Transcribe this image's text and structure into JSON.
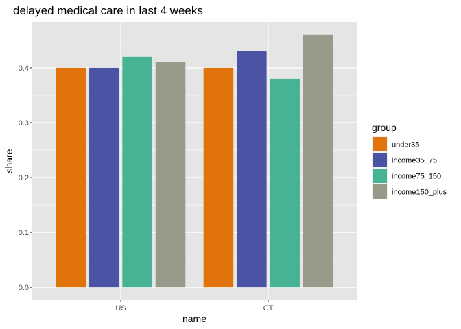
{
  "chart_data": {
    "type": "bar",
    "title": "delayed medical care in last 4 weeks",
    "xlabel": "name",
    "ylabel": "share",
    "categories": [
      "US",
      "CT"
    ],
    "series": [
      {
        "name": "under35",
        "values": [
          0.4,
          0.4
        ],
        "color": "#E07309"
      },
      {
        "name": "income35_75",
        "values": [
          0.4,
          0.43
        ],
        "color": "#4B53A5"
      },
      {
        "name": "income75_150",
        "values": [
          0.42,
          0.38
        ],
        "color": "#47B395"
      },
      {
        "name": "income150_plus",
        "values": [
          0.41,
          0.46
        ],
        "color": "#989B8A"
      }
    ],
    "yticks": [
      "0.0",
      "0.1",
      "0.2",
      "0.3",
      "0.4"
    ],
    "ylim": [
      -0.0235,
      0.4835
    ],
    "grid": true,
    "legend": {
      "title": "group",
      "placement": "right"
    },
    "panel_background": "#E5E5E5"
  }
}
